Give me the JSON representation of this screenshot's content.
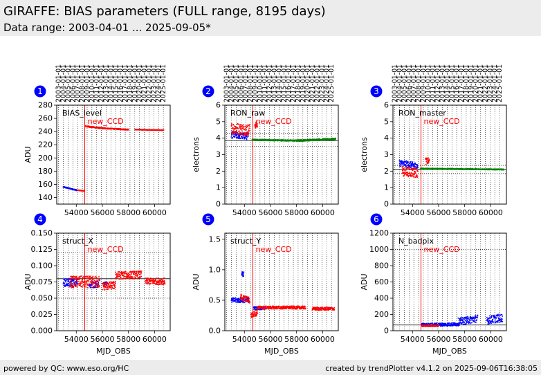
{
  "header": {
    "title": "GIRAFFE: BIAS parameters (FULL range, 8195 days)",
    "subtitle": "Data range: 2003-04-01 ... 2025-09-05*"
  },
  "footer": {
    "left": "powered by QC: www.eso.org/HC",
    "right": "created by trendPlotter v4.1.2 on 2025-09-06T16:38:05"
  },
  "colors": {
    "blue": "#0000ff",
    "red": "#ff0000",
    "green": "#008000",
    "badge": "#0000ff"
  },
  "date_ticks": [
    "2003-01-01",
    "2004-01-01",
    "2005-01-01",
    "2006-01-01",
    "2007-01-01",
    "2008-01-01",
    "2009-01-01",
    "2010-01-01",
    "2011-01-01",
    "2012-01-01",
    "2013-01-01",
    "2014-01-01",
    "2015-01-01",
    "2016-01-01",
    "2017-01-01",
    "2018-01-01",
    "2019-01-01",
    "2020-01-01",
    "2021-01-01",
    "2022-01-01",
    "2023-01-01",
    "2024-01-01",
    "2025-01-01"
  ],
  "chart_data": [
    {
      "type": "scatter",
      "panel": "1",
      "label": "BIAS_level",
      "annotation": "new_CCD",
      "event_x": 54650,
      "xlabel": "",
      "ylabel": "ADU",
      "xlim": [
        52500,
        61200
      ],
      "ylim": [
        130,
        280
      ],
      "xticks": [
        54000,
        56000,
        58000,
        60000
      ],
      "yticks": [
        140,
        160,
        180,
        200,
        220,
        240,
        260,
        280
      ],
      "ref_lines": [],
      "series": [
        {
          "color": "blue",
          "segments": [
            {
              "x": [
                53000,
                54050
              ],
              "y": [
                156,
                151
              ],
              "spread": 1.5
            }
          ]
        },
        {
          "color": "red",
          "segments": [
            {
              "x": [
                54100,
                54600
              ],
              "y": [
                151,
                150
              ],
              "spread": 1
            },
            {
              "x": [
                54700,
                56000
              ],
              "y": [
                248,
                245
              ],
              "spread": 2
            },
            {
              "x": [
                56000,
                58000
              ],
              "y": [
                245,
                243
              ],
              "spread": 1.5
            },
            {
              "x": [
                58500,
                60700
              ],
              "y": [
                243,
                242
              ],
              "spread": 1
            }
          ]
        }
      ]
    },
    {
      "type": "scatter",
      "panel": "2",
      "label": "RON_raw",
      "annotation": "new_CCD",
      "event_x": 54650,
      "xlabel": "",
      "ylabel": "electrons",
      "xlim": [
        52500,
        61200
      ],
      "ylim": [
        0,
        6
      ],
      "xticks": [
        54000,
        56000,
        58000,
        60000
      ],
      "yticks": [
        0,
        1,
        2,
        3,
        4,
        5,
        6
      ],
      "ref_lines": [
        4.3,
        3.5
      ],
      "mean_line": 3.85,
      "series": [
        {
          "color": "blue",
          "segments": [
            {
              "x": [
                53000,
                54300
              ],
              "y": [
                4.2,
                4.1
              ],
              "spread": 0.4
            }
          ]
        },
        {
          "color": "red",
          "segments": [
            {
              "x": [
                53000,
                54400
              ],
              "y": [
                4.6,
                4.5
              ],
              "spread": 0.7
            },
            {
              "x": [
                54800,
                55000
              ],
              "y": [
                4.8,
                4.8
              ],
              "spread": 0.4
            }
          ]
        },
        {
          "color": "green",
          "segments": [
            {
              "x": [
                54600,
                58000
              ],
              "y": [
                3.9,
                3.85
              ],
              "spread": 0.08
            },
            {
              "x": [
                58000,
                61000
              ],
              "y": [
                3.85,
                3.95
              ],
              "spread": 0.1
            }
          ]
        }
      ]
    },
    {
      "type": "scatter",
      "panel": "3",
      "label": "RON_master",
      "annotation": "new_CCD",
      "event_x": 54650,
      "xlabel": "",
      "ylabel": "electrons",
      "xlim": [
        52500,
        61200
      ],
      "ylim": [
        0,
        6
      ],
      "xticks": [
        54000,
        56000,
        58000,
        60000
      ],
      "yticks": [
        0,
        1,
        2,
        3,
        4,
        5,
        6
      ],
      "ref_lines": [
        2.35,
        1.85
      ],
      "mean_line": 2.1,
      "series": [
        {
          "color": "blue",
          "segments": [
            {
              "x": [
                53000,
                54400
              ],
              "y": [
                2.5,
                2.3
              ],
              "spread": 0.4
            }
          ]
        },
        {
          "color": "red",
          "segments": [
            {
              "x": [
                53200,
                54400
              ],
              "y": [
                2.0,
                1.9
              ],
              "spread": 0.6
            },
            {
              "x": [
                55000,
                55300
              ],
              "y": [
                2.6,
                2.6
              ],
              "spread": 0.4
            }
          ]
        },
        {
          "color": "green",
          "segments": [
            {
              "x": [
                54600,
                61000
              ],
              "y": [
                2.15,
                2.1
              ],
              "spread": 0.06
            }
          ]
        }
      ]
    },
    {
      "type": "scatter",
      "panel": "4",
      "label": "struct_X",
      "annotation": "new_CCD",
      "event_x": 54650,
      "xlabel": "MJD_OBS",
      "ylabel": "ADU",
      "xlim": [
        52500,
        61200
      ],
      "ylim": [
        0,
        0.15
      ],
      "xticks": [
        54000,
        56000,
        58000,
        60000
      ],
      "yticks": [
        0.0,
        0.025,
        0.05,
        0.075,
        0.1,
        0.125,
        0.15
      ],
      "ref_lines": [
        0.12,
        0.05
      ],
      "mean_line": 0.08,
      "series": [
        {
          "color": "blue",
          "segments": [
            {
              "x": [
                53000,
                54100
              ],
              "y": [
                0.074,
                0.074
              ],
              "spread": 0.012
            },
            {
              "x": [
                55000,
                55700
              ],
              "y": [
                0.071,
                0.071
              ],
              "spread": 0.01
            },
            {
              "x": [
                56100,
                56400
              ],
              "y": [
                0.072,
                0.072
              ],
              "spread": 0.006
            }
          ]
        },
        {
          "color": "red",
          "segments": [
            {
              "x": [
                53500,
                55800
              ],
              "y": [
                0.075,
                0.075
              ],
              "spread": 0.018
            },
            {
              "x": [
                56000,
                57000
              ],
              "y": [
                0.068,
                0.07
              ],
              "spread": 0.012
            },
            {
              "x": [
                57000,
                59000
              ],
              "y": [
                0.085,
                0.086
              ],
              "spread": 0.012
            },
            {
              "x": [
                59300,
                60800
              ],
              "y": [
                0.076,
                0.076
              ],
              "spread": 0.01
            }
          ]
        }
      ]
    },
    {
      "type": "scatter",
      "panel": "5",
      "label": "struct_Y",
      "annotation": "new_CCD",
      "event_x": 54650,
      "xlabel": "MJD_OBS",
      "ylabel": "ADU",
      "xlim": [
        52500,
        61200
      ],
      "ylim": [
        0,
        1.6
      ],
      "xticks": [
        54000,
        56000,
        58000,
        60000
      ],
      "yticks": [
        0.0,
        0.5,
        1.0,
        1.5
      ],
      "ref_lines": [],
      "mean_line": null,
      "series": [
        {
          "color": "blue",
          "segments": [
            {
              "x": [
                53000,
                54400
              ],
              "y": [
                0.5,
                0.5
              ],
              "spread": 0.08
            },
            {
              "x": [
                53800,
                53950
              ],
              "y": [
                0.93,
                0.93
              ],
              "spread": 0.08
            },
            {
              "x": [
                54700,
                55600
              ],
              "y": [
                0.37,
                0.37
              ],
              "spread": 0.05
            }
          ]
        },
        {
          "color": "red",
          "segments": [
            {
              "x": [
                53700,
                54400
              ],
              "y": [
                0.55,
                0.5
              ],
              "spread": 0.1
            },
            {
              "x": [
                54500,
                55000
              ],
              "y": [
                0.25,
                0.3
              ],
              "spread": 0.1
            },
            {
              "x": [
                55000,
                58700
              ],
              "y": [
                0.38,
                0.38
              ],
              "spread": 0.05
            },
            {
              "x": [
                59200,
                60900
              ],
              "y": [
                0.36,
                0.36
              ],
              "spread": 0.05
            }
          ]
        }
      ]
    },
    {
      "type": "scatter",
      "panel": "6",
      "label": "N_badpix",
      "annotation": "new_CCD",
      "event_x": 54650,
      "xlabel": "MJD_OBS",
      "ylabel": "ADU",
      "xlim": [
        52500,
        61200
      ],
      "ylim": [
        0,
        1200
      ],
      "xticks": [
        54000,
        56000,
        58000,
        60000
      ],
      "yticks": [
        0,
        200,
        400,
        600,
        800,
        1000,
        1200
      ],
      "ref_lines": [
        1000
      ],
      "mean_line": 70,
      "series": [
        {
          "color": "blue",
          "segments": [
            {
              "x": [
                54700,
                57500
              ],
              "y": [
                70,
                80
              ],
              "spread": 40
            },
            {
              "x": [
                57500,
                59000
              ],
              "y": [
                110,
                150
              ],
              "spread": 90
            },
            {
              "x": [
                59700,
                60900
              ],
              "y": [
                130,
                160
              ],
              "spread": 100
            }
          ]
        },
        {
          "color": "red",
          "segments": [
            {
              "x": [
                54700,
                56000
              ],
              "y": [
                60,
                60
              ],
              "spread": 20
            }
          ]
        }
      ]
    }
  ]
}
